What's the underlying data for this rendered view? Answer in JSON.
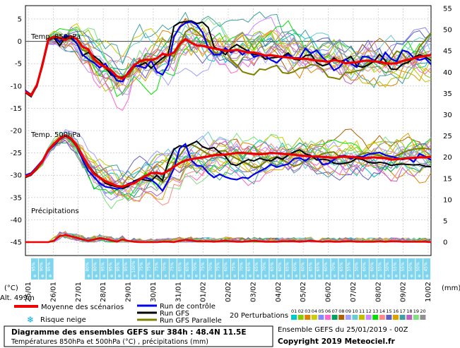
{
  "chart_data": {
    "type": "line",
    "title_box": {
      "line1": "Diagramme des ensembles GEFS sur 384h : 48.4N 11.5E",
      "line2": "Températures 850hPa et 500hPa (°C) , précipitations (mm)"
    },
    "panels": {
      "t850": {
        "label": "Temp. 850hPa"
      },
      "t500": {
        "label": "Temp. 500hPa"
      },
      "precip": {
        "label": "Précipitations"
      }
    },
    "left_axis": {
      "ticks": [
        5,
        0,
        -5,
        -10,
        -15,
        -20,
        -25,
        -30,
        -35,
        -40,
        -45
      ],
      "range": [
        -48,
        8
      ],
      "unit": "(°C)"
    },
    "right_axis": {
      "ticks": [
        55,
        50,
        45,
        40,
        35,
        30,
        25,
        20,
        15,
        10,
        5,
        0
      ]
    },
    "altitude": "Alt. 499m",
    "unit_mm": "(mm)",
    "x_axis": {
      "labels": [
        "25/01",
        "26/01",
        "27/01",
        "28/01",
        "29/01",
        "30/01",
        "31/01",
        "01/02",
        "02/02",
        "03/02",
        "04/02",
        "05/02",
        "06/02",
        "07/02",
        "08/02",
        "09/02",
        "10/02"
      ]
    },
    "snow_risk": [
      "95%",
      "90%",
      "95%",
      "",
      "",
      "",
      "",
      "80%",
      "80%",
      "95%",
      "95%",
      "95%",
      "95%",
      "100%",
      "75%",
      "75%",
      "75%",
      "70%",
      "75%",
      "65%",
      "65%",
      "70%",
      "75%",
      "70%",
      "75%",
      "60%",
      "75%",
      "70%",
      "65%",
      "65%",
      "70%",
      "65%",
      "60%",
      "65%",
      "60%",
      "60%",
      "65%",
      "65%",
      "60%",
      "70%",
      "65%",
      "55%",
      "50%",
      "60%",
      "60%",
      "55%",
      "50%",
      "55%",
      "55%",
      "50%",
      "50%",
      "45%"
    ],
    "legend": {
      "mean": "Moyenne des scénarios",
      "snow": "Risque neige",
      "control": "Run de contrôle",
      "gfs": "Run GFS",
      "gfs_par": "Run GFS Parallele",
      "perturb": "20 Perturbations",
      "perturb_ids": [
        "01",
        "02",
        "03",
        "04",
        "05",
        "06",
        "07",
        "08",
        "09",
        "10",
        "11",
        "12",
        "13",
        "14",
        "15",
        "16",
        "17",
        "18",
        "19",
        "20"
      ]
    },
    "ensemble_info": "Ensemble GEFS du 25/01/2019 - 00Z",
    "copyright": "Copyright 2019 Meteociel.fr",
    "colors": {
      "mean": "#ee0000",
      "control": "#0000ee",
      "gfs": "#000000",
      "gfs_par": "#808000",
      "snow_box": "#7fd4ee",
      "perturb": [
        "#00c8c8",
        "#88cc00",
        "#e08000",
        "#cccc00",
        "#8888ff",
        "#ff66cc",
        "#00a060",
        "#b06000",
        "#a0a0ff",
        "#66cccc",
        "#c0c000",
        "#cc88ff",
        "#00e000",
        "#ff8888",
        "#6060c0",
        "#e0a000",
        "#40a0a0",
        "#c060c0",
        "#80e080",
        "#909090"
      ]
    },
    "series": {
      "t850_mean": [
        -11.3,
        -12.1,
        -9.8,
        -5.1,
        0.4,
        1.0,
        0.8,
        0.3,
        1.1,
        0.5,
        -1.2,
        -1.8,
        -3.9,
        -5.1,
        -5.8,
        -6.5,
        -7.8,
        -8.4,
        -7.2,
        -5.4,
        -4.5,
        -4.1,
        -4.2,
        -3.8,
        -2.8,
        -3.1,
        -2.5,
        -0.6,
        0.5,
        -0.3,
        -0.9,
        -1.0,
        -1.3,
        -1.6,
        -1.8,
        -2.1,
        -2.1,
        -1.9,
        -2.2,
        -2.5,
        -2.5,
        -2.8,
        -3.2,
        -3.1,
        -3.3,
        -3.5,
        -3.6,
        -3.8,
        -3.9,
        -3.9,
        -4.1,
        -4.3,
        -4.4,
        -4.6,
        -4.2,
        -4.4,
        -4.9,
        -4.8,
        -4.7,
        -4.4,
        -4.3,
        -4.5,
        -4.6,
        -4.9,
        -5.0,
        -4.9,
        -4.4,
        -4.1,
        -3.8,
        -3.5,
        -3.3,
        -3.0
      ],
      "t850_control": [
        -11.0,
        -12.0,
        -10.1,
        -5.0,
        0.5,
        1.1,
        -0.2,
        1.3,
        1.0,
        -0.5,
        -3.0,
        -4.0,
        -4.8,
        -5.9,
        -5.0,
        -7.0,
        -8.8,
        -9.0,
        -6.8,
        -5.4,
        -5.6,
        -6.0,
        -4.3,
        -6.8,
        -7.5,
        -5.2,
        1.0,
        3.2,
        4.1,
        4.4,
        3.7,
        2.0,
        -1.5,
        -3.0,
        -3.0,
        -1.5,
        -2.5,
        -1.8,
        -3.0,
        -2.0,
        -3.5,
        -3.1,
        -3.3,
        -4.2,
        -4.8,
        -3.6,
        -3.0,
        -3.7,
        -3.7,
        -1.6,
        -2.7,
        -2.0,
        -3.6,
        -4.7,
        -6.5,
        -5.8,
        -4.0,
        -5.0,
        -5.8,
        -3.4,
        -3.5,
        -4.3,
        -4.9,
        -2.5,
        -3.9,
        -4.5,
        -2.0,
        -2.4,
        -3.7,
        -4.2,
        -3.8,
        -5.2
      ],
      "t850_gfs": [
        -11.5,
        -12.4,
        -10.0,
        -4.6,
        0.2,
        0.8,
        -1.0,
        1.0,
        0.7,
        -0.5,
        -3.2,
        -2.5,
        -3.3,
        -4.3,
        -5.8,
        -7.5,
        -7.9,
        -8.1,
        -7.3,
        -5.6,
        -5.4,
        -4.8,
        -6.0,
        -4.8,
        -3.8,
        -2.8,
        3.4,
        4.2,
        4.4,
        4.6,
        4.0,
        4.3,
        3.1,
        -1.2,
        -1.9,
        -3.0,
        -1.5,
        -0.7,
        -1.5,
        -2.2,
        -3.0,
        -2.9,
        -4.0,
        -3.7,
        -3.6,
        -3.4,
        -2.6,
        -4.0,
        -4.2,
        -3.2,
        -3.0,
        -4.8,
        -5.5,
        -5.1,
        -3.7,
        -4.6,
        -4.1,
        -3.4,
        -5.5,
        -5.8,
        -5.3,
        -4.5,
        -2.9,
        -4.3,
        -6.2,
        -6.3,
        -5.1,
        -4.7,
        -3.6,
        -3.0,
        -3.5,
        -4.3
      ],
      "t850_par": [
        -11.2,
        -11.8,
        -9.6,
        -5.3,
        0.6,
        1.2,
        0.3,
        0.9,
        0.5,
        -0.3,
        -2.0,
        -2.2,
        -4.6,
        -4.8,
        -6.2,
        -6.9,
        -8.5,
        -7.8,
        -8.0,
        -5.9,
        -4.0,
        -4.9,
        -3.8,
        -5.2,
        -4.6,
        -2.9,
        -3.4,
        -1.0,
        2.1,
        3.0,
        2.2,
        1.0,
        0.1,
        -2.3,
        -3.0,
        -2.2,
        -4.1,
        -5.3,
        -6.8,
        -7.2,
        -7.5,
        -6.2,
        -6.4,
        -5.8,
        -5.4,
        -7.0,
        -7.2,
        -6.8,
        -6.0,
        -5.9,
        -5.2,
        -5.4,
        -6.2,
        -8.0,
        -8.2,
        -8.5,
        -7.0,
        -7.0,
        -6.6,
        -6.4,
        -5.0,
        -4.1,
        -4.9,
        -5.4,
        -4.0,
        -2.2,
        -2.7,
        -4.6,
        -3.9,
        -1.2,
        0.3,
        1.9
      ],
      "t500_mean": [
        -30.3,
        -29.8,
        -28.4,
        -26.8,
        -24.4,
        -23.0,
        -21.8,
        -21.1,
        -21.8,
        -23.4,
        -25.7,
        -27.9,
        -29.7,
        -30.5,
        -31.4,
        -31.9,
        -32.4,
        -32.6,
        -32.1,
        -31.8,
        -31.0,
        -30.2,
        -29.5,
        -29.5,
        -29.7,
        -29.0,
        -28.1,
        -27.3,
        -26.7,
        -26.4,
        -26.2,
        -26.0,
        -25.8,
        -25.5,
        -25.4,
        -25.4,
        -25.2,
        -25.0,
        -25.0,
        -25.1,
        -25.2,
        -25.3,
        -25.2,
        -25.0,
        -25.1,
        -25.2,
        -25.3,
        -25.4,
        -25.6,
        -25.7,
        -25.8,
        -25.8,
        -25.9,
        -26.0,
        -26.1,
        -25.9,
        -25.8,
        -25.9,
        -26.0,
        -26.2,
        -26.1,
        -26.0,
        -26.1,
        -26.2,
        -26.5,
        -26.4,
        -26.3,
        -26.2,
        -26.1,
        -26.0,
        -26.0,
        -25.9
      ],
      "t500_control": [
        -30.0,
        -29.5,
        -28.1,
        -26.6,
        -24.5,
        -23.3,
        -22.0,
        -21.2,
        -22.0,
        -23.6,
        -26.5,
        -29.0,
        -30.4,
        -31.8,
        -32.6,
        -32.8,
        -33.1,
        -32.8,
        -31.9,
        -31.5,
        -31.0,
        -30.5,
        -31.0,
        -32.0,
        -33.5,
        -31.2,
        -28.5,
        -24.0,
        -23.0,
        -26.6,
        -27.8,
        -28.0,
        -29.5,
        -30.5,
        -29.8,
        -30.4,
        -30.8,
        -31.0,
        -30.5,
        -30.7,
        -29.8,
        -29.1,
        -28.5,
        -27.6,
        -28.2,
        -27.8,
        -27.5,
        -26.3,
        -26.1,
        -26.8,
        -25.8,
        -25.9,
        -27.6,
        -27.4,
        -26.5,
        -25.7,
        -25.6,
        -26.3,
        -25.8,
        -25.9,
        -25.3,
        -25.1,
        -24.9,
        -25.5,
        -25.8,
        -26.1,
        -26.5,
        -26.2,
        -27.0,
        -25.2,
        -25.8,
        -26.6
      ],
      "t500_gfs": [
        -30.5,
        -30.0,
        -28.6,
        -26.7,
        -24.6,
        -23.1,
        -21.9,
        -21.0,
        -21.7,
        -23.2,
        -25.6,
        -27.7,
        -29.4,
        -30.5,
        -31.8,
        -32.3,
        -32.6,
        -33.0,
        -32.5,
        -31.3,
        -30.8,
        -31.1,
        -31.3,
        -30.0,
        -31.2,
        -27.0,
        -24.2,
        -23.4,
        -23.6,
        -23.0,
        -22.4,
        -23.6,
        -24.1,
        -23.8,
        -24.9,
        -25.8,
        -27.5,
        -27.8,
        -27.1,
        -26.5,
        -26.8,
        -26.2,
        -26.6,
        -26.8,
        -26.0,
        -26.4,
        -25.5,
        -24.8,
        -24.3,
        -25.2,
        -25.6,
        -26.6,
        -26.4,
        -26.6,
        -27.3,
        -27.5,
        -27.3,
        -27.0,
        -26.2,
        -26.5,
        -27.1,
        -27.3,
        -27.1,
        -27.3,
        -27.8,
        -27.6,
        -27.5,
        -27.6,
        -27.7,
        -27.6,
        -28.0,
        -28.1
      ],
      "t500_par": [
        -30.1,
        -29.6,
        -28.7,
        -27.0,
        -24.3,
        -22.8,
        -21.7,
        -21.2,
        -22.1,
        -23.8,
        -25.9,
        -28.2,
        -29.8,
        -30.6,
        -31.2,
        -31.7,
        -32.5,
        -32.9,
        -32.4,
        -31.6,
        -30.7,
        -29.9,
        -30.1,
        -30.8,
        -31.6,
        -30.3,
        -27.2,
        -25.6,
        -23.8,
        -23.1,
        -23.7,
        -24.5,
        -25.3,
        -25.6,
        -24.6,
        -24.5,
        -25.6,
        -26.3,
        -27.0,
        -27.5,
        -28.3,
        -28.0,
        -27.0,
        -26.2,
        -25.8,
        -26.6,
        -27.2,
        -28.0,
        -27.6,
        -26.6,
        -26.4,
        -25.8,
        -25.2,
        -24.9,
        -24.8,
        -25.9,
        -26.0,
        -26.4,
        -25.8,
        -25.2,
        -24.9,
        -25.4,
        -25.6,
        -26.0,
        -26.1,
        -25.6,
        -25.0,
        -24.5,
        -24.2,
        -24.0,
        -24.0,
        -24.2
      ],
      "precip_mean": [
        0,
        0,
        0,
        0,
        0,
        0.3,
        1.4,
        1.6,
        1.3,
        1.0,
        0.6,
        0.3,
        0.6,
        0.9,
        0.7,
        0.4,
        0.1,
        0.6,
        0.3,
        0.1,
        0,
        0,
        0,
        0,
        0.1,
        0.1,
        0,
        0.3,
        0.5,
        0.4,
        0.2,
        0.2,
        0.2,
        0.1,
        0.2,
        0.3,
        0.2,
        0.1,
        0.1,
        0.2,
        0.3,
        0.2,
        0.1,
        0.1,
        0.1,
        0.2,
        0.2,
        0.2,
        0.1,
        0.2,
        0.3,
        0.2,
        0.1,
        0.2,
        0.1,
        0.1,
        0.2,
        0.2,
        0.1,
        0.1,
        0.1,
        0.1,
        0.2,
        0.1,
        0.2,
        0.2,
        0.1,
        0.1,
        0.1,
        0.1,
        0.1,
        0
      ]
    }
  }
}
